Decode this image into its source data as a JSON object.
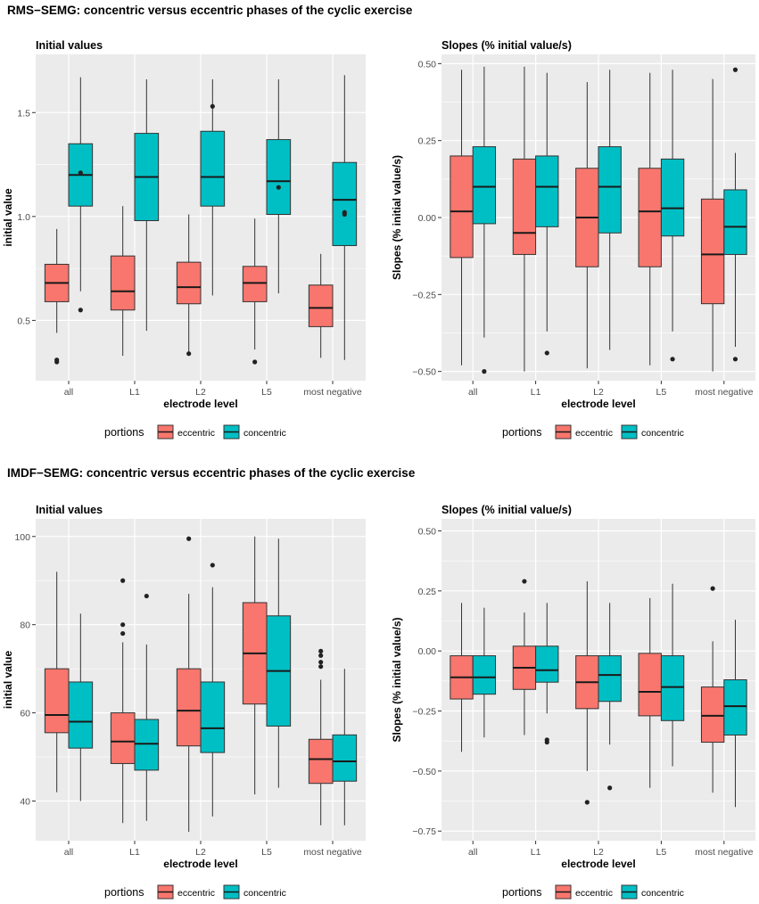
{
  "figure_titles": [
    "RMS−SEMG: concentric versus eccentric phases of the cyclic exercise",
    "IMDF−SEMG: concentric versus eccentric phases of the cyclic exercise"
  ],
  "colors": {
    "eccentric": "#F8766D",
    "concentric": "#00BFC4",
    "panel_bg": "#EBEBEB",
    "grid": "#FFFFFF"
  },
  "chart_data": [
    {
      "type": "boxplot",
      "title": "Initial values",
      "xlabel": "electrode level",
      "ylabel": "initial value",
      "ylim": [
        0.21,
        1.78
      ],
      "yticks": [
        0.5,
        1.0,
        1.5
      ],
      "ytick_labels": [
        "0.5",
        "1.0",
        "1.5"
      ],
      "minor_yticks": [
        0.75,
        1.25
      ],
      "categories": [
        "all",
        "L1",
        "L2",
        "L5",
        "most negative"
      ],
      "legend_title": "portions",
      "series": [
        {
          "name": "eccentric",
          "boxes": [
            {
              "min": 0.44,
              "q1": 0.59,
              "median": 0.68,
              "q3": 0.77,
              "max": 0.94,
              "outliers": [
                0.3,
                0.31
              ]
            },
            {
              "min": 0.33,
              "q1": 0.55,
              "median": 0.64,
              "q3": 0.81,
              "max": 1.05,
              "outliers": []
            },
            {
              "min": 0.33,
              "q1": 0.58,
              "median": 0.66,
              "q3": 0.78,
              "max": 1.01,
              "outliers": [
                0.34
              ]
            },
            {
              "min": 0.36,
              "q1": 0.59,
              "median": 0.68,
              "q3": 0.76,
              "max": 0.99,
              "outliers": [
                0.3
              ]
            },
            {
              "min": 0.32,
              "q1": 0.47,
              "median": 0.56,
              "q3": 0.67,
              "max": 0.82,
              "outliers": []
            }
          ]
        },
        {
          "name": "concentric",
          "boxes": [
            {
              "min": 0.64,
              "q1": 1.05,
              "median": 1.2,
              "q3": 1.35,
              "max": 1.67,
              "outliers": [
                1.21,
                0.55
              ]
            },
            {
              "min": 0.45,
              "q1": 0.98,
              "median": 1.19,
              "q3": 1.4,
              "max": 1.66,
              "outliers": []
            },
            {
              "min": 0.62,
              "q1": 1.05,
              "median": 1.19,
              "q3": 1.41,
              "max": 1.66,
              "outliers": [
                1.53
              ]
            },
            {
              "min": 0.63,
              "q1": 1.01,
              "median": 1.17,
              "q3": 1.37,
              "max": 1.66,
              "outliers": [
                1.14
              ]
            },
            {
              "min": 0.31,
              "q1": 0.86,
              "median": 1.08,
              "q3": 1.26,
              "max": 1.68,
              "outliers": [
                1.02,
                1.01
              ]
            }
          ]
        }
      ]
    },
    {
      "type": "boxplot",
      "title": "Slopes (% initial value/s)",
      "xlabel": "electrode level",
      "ylabel": "Slopes (% initial value/s)",
      "ylim": [
        -0.53,
        0.53
      ],
      "yticks": [
        -0.5,
        -0.25,
        0.0,
        0.25,
        0.5
      ],
      "ytick_labels": [
        "−0.50",
        "−0.25",
        "0.00",
        "0.25",
        "0.50"
      ],
      "minor_yticks": [
        -0.375,
        -0.125,
        0.125,
        0.375
      ],
      "categories": [
        "all",
        "L1",
        "L2",
        "L5",
        "most negative"
      ],
      "legend_title": "portions",
      "series": [
        {
          "name": "eccentric",
          "boxes": [
            {
              "min": -0.48,
              "q1": -0.13,
              "median": 0.02,
              "q3": 0.2,
              "max": 0.48,
              "outliers": []
            },
            {
              "min": -0.5,
              "q1": -0.12,
              "median": -0.05,
              "q3": 0.19,
              "max": 0.49,
              "outliers": []
            },
            {
              "min": -0.49,
              "q1": -0.16,
              "median": 0.0,
              "q3": 0.16,
              "max": 0.44,
              "outliers": []
            },
            {
              "min": -0.48,
              "q1": -0.16,
              "median": 0.02,
              "q3": 0.16,
              "max": 0.47,
              "outliers": []
            },
            {
              "min": -0.5,
              "q1": -0.28,
              "median": -0.12,
              "q3": 0.06,
              "max": 0.45,
              "outliers": []
            }
          ]
        },
        {
          "name": "concentric",
          "boxes": [
            {
              "min": -0.39,
              "q1": -0.02,
              "median": 0.1,
              "q3": 0.23,
              "max": 0.49,
              "outliers": [
                -0.5
              ]
            },
            {
              "min": -0.37,
              "q1": -0.03,
              "median": 0.1,
              "q3": 0.2,
              "max": 0.47,
              "outliers": [
                -0.44
              ]
            },
            {
              "min": -0.43,
              "q1": -0.05,
              "median": 0.1,
              "q3": 0.23,
              "max": 0.48,
              "outliers": []
            },
            {
              "min": -0.37,
              "q1": -0.06,
              "median": 0.03,
              "q3": 0.19,
              "max": 0.48,
              "outliers": [
                -0.46
              ]
            },
            {
              "min": -0.42,
              "q1": -0.12,
              "median": -0.03,
              "q3": 0.09,
              "max": 0.21,
              "outliers": [
                0.48,
                -0.46
              ]
            }
          ]
        }
      ]
    },
    {
      "type": "boxplot",
      "title": "Initial values",
      "xlabel": "electrode level",
      "ylabel": "initial value",
      "ylim": [
        31,
        104
      ],
      "yticks": [
        40,
        60,
        80,
        100
      ],
      "ytick_labels": [
        "40",
        "60",
        "80",
        "100"
      ],
      "minor_yticks": [
        50,
        70,
        90
      ],
      "categories": [
        "all",
        "L1",
        "L2",
        "L5",
        "most negative"
      ],
      "legend_title": "portions",
      "series": [
        {
          "name": "eccentric",
          "boxes": [
            {
              "min": 42,
              "q1": 55.5,
              "median": 59.5,
              "q3": 70,
              "max": 92,
              "outliers": []
            },
            {
              "min": 35,
              "q1": 48.5,
              "median": 53.5,
              "q3": 60,
              "max": 76,
              "outliers": [
                90,
                80,
                78
              ]
            },
            {
              "min": 33,
              "q1": 52.5,
              "median": 60.5,
              "q3": 70,
              "max": 87,
              "outliers": [
                99.5
              ]
            },
            {
              "min": 41.5,
              "q1": 62,
              "median": 73.5,
              "q3": 85,
              "max": 100,
              "outliers": []
            },
            {
              "min": 34.5,
              "q1": 44,
              "median": 49.5,
              "q3": 54,
              "max": 67.5,
              "outliers": [
                74,
                73,
                71.5,
                70.5
              ]
            }
          ]
        },
        {
          "name": "concentric",
          "boxes": [
            {
              "min": 40,
              "q1": 52,
              "median": 58,
              "q3": 67,
              "max": 82.5,
              "outliers": []
            },
            {
              "min": 35.5,
              "q1": 47,
              "median": 53,
              "q3": 58.5,
              "max": 75.5,
              "outliers": [
                86.5
              ]
            },
            {
              "min": 36.5,
              "q1": 51,
              "median": 56.5,
              "q3": 67,
              "max": 88.5,
              "outliers": [
                93.5
              ]
            },
            {
              "min": 43,
              "q1": 57,
              "median": 69.5,
              "q3": 82,
              "max": 99.5,
              "outliers": []
            },
            {
              "min": 34.5,
              "q1": 44.5,
              "median": 49,
              "q3": 55,
              "max": 70,
              "outliers": []
            }
          ]
        }
      ]
    },
    {
      "type": "boxplot",
      "title": "Slopes (% initial value/s)",
      "xlabel": "electrode level",
      "ylabel": "Slopes (% initial value/s)",
      "ylim": [
        -0.79,
        0.55
      ],
      "yticks": [
        -0.75,
        -0.5,
        -0.25,
        0.0,
        0.25,
        0.5
      ],
      "ytick_labels": [
        "−0.75",
        "−0.50",
        "−0.25",
        "0.00",
        "0.25",
        "0.50"
      ],
      "minor_yticks": [
        -0.625,
        -0.375,
        -0.125,
        0.125,
        0.375
      ],
      "categories": [
        "all",
        "L1",
        "L2",
        "L5",
        "most negative"
      ],
      "legend_title": "portions",
      "series": [
        {
          "name": "eccentric",
          "boxes": [
            {
              "min": -0.42,
              "q1": -0.2,
              "median": -0.11,
              "q3": -0.02,
              "max": 0.2,
              "outliers": []
            },
            {
              "min": -0.35,
              "q1": -0.16,
              "median": -0.07,
              "q3": 0.02,
              "max": 0.16,
              "outliers": [
                0.29
              ]
            },
            {
              "min": -0.5,
              "q1": -0.24,
              "median": -0.13,
              "q3": -0.02,
              "max": 0.29,
              "outliers": [
                -0.63
              ]
            },
            {
              "min": -0.57,
              "q1": -0.27,
              "median": -0.17,
              "q3": -0.01,
              "max": 0.22,
              "outliers": []
            },
            {
              "min": -0.59,
              "q1": -0.38,
              "median": -0.27,
              "q3": -0.15,
              "max": 0.04,
              "outliers": [
                0.26
              ]
            }
          ]
        },
        {
          "name": "concentric",
          "boxes": [
            {
              "min": -0.36,
              "q1": -0.18,
              "median": -0.11,
              "q3": -0.02,
              "max": 0.18,
              "outliers": []
            },
            {
              "min": -0.26,
              "q1": -0.13,
              "median": -0.08,
              "q3": 0.02,
              "max": 0.2,
              "outliers": [
                -0.37,
                -0.38
              ]
            },
            {
              "min": -0.39,
              "q1": -0.21,
              "median": -0.1,
              "q3": -0.02,
              "max": 0.2,
              "outliers": [
                -0.57
              ]
            },
            {
              "min": -0.48,
              "q1": -0.29,
              "median": -0.15,
              "q3": -0.02,
              "max": 0.28,
              "outliers": []
            },
            {
              "min": -0.65,
              "q1": -0.35,
              "median": -0.23,
              "q3": -0.12,
              "max": 0.13,
              "outliers": []
            }
          ]
        }
      ]
    }
  ]
}
